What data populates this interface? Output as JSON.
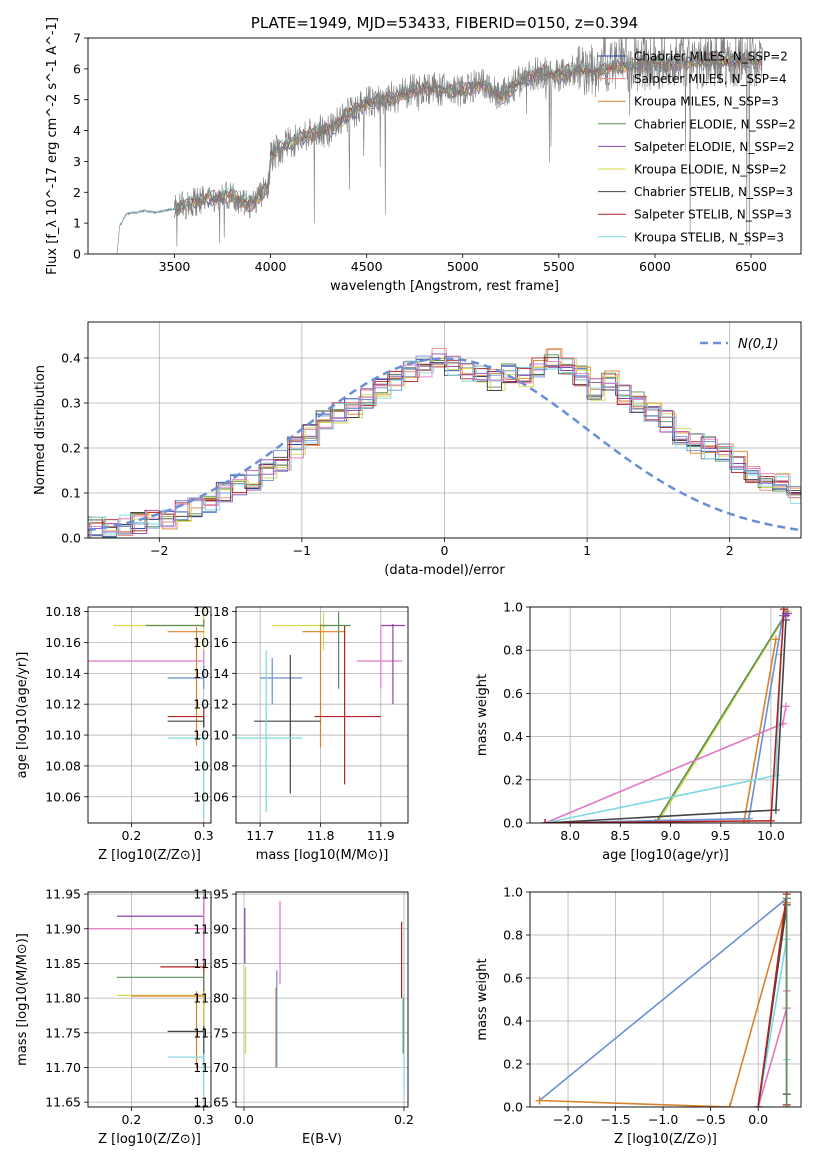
{
  "chart_data": [
    {
      "type": "line",
      "title": "PLATE=1949, MJD=53433, FIBERID=0150, z=0.394",
      "xlabel": "wavelength [Angstrom, rest frame]",
      "ylabel": "Flux [f_λ 10^-17 erg cm^-2 s^-1 A^-1]",
      "xlim": [
        3050,
        6760
      ],
      "ylim": [
        0,
        7
      ],
      "xticks": [
        3500,
        4000,
        4500,
        5000,
        5500,
        6000,
        6500
      ],
      "yticks": [
        0,
        1,
        2,
        3,
        4,
        5,
        6,
        7
      ],
      "legend_position": "right",
      "series": [
        {
          "name": "Chabrier MILES, N_SSP=2",
          "color": "#1f3f9f"
        },
        {
          "name": "Salpeter MILES, N_SSP=4",
          "color": "#f08080"
        },
        {
          "name": "Kroupa MILES, N_SSP=3",
          "color": "#d9822b"
        },
        {
          "name": "Chabrier ELODIE, N_SSP=2",
          "color": "#5a8f5a"
        },
        {
          "name": "Salpeter ELODIE, N_SSP=2",
          "color": "#8e44ad"
        },
        {
          "name": "Kroupa ELODIE, N_SSP=2",
          "color": "#d4d84a"
        },
        {
          "name": "Chabrier STELIB, N_SSP=3",
          "color": "#444444"
        },
        {
          "name": "Salpeter STELIB, N_SSP=3",
          "color": "#b22222"
        },
        {
          "name": "Kroupa STELIB, N_SSP=3",
          "color": "#7fd8e0"
        }
      ],
      "data_series": {
        "color": "#808080",
        "x_start": 3200,
        "x_end": 6560
      },
      "continuum": [
        [
          3200,
          0
        ],
        [
          3215,
          0.9
        ],
        [
          3250,
          1.3
        ],
        [
          3300,
          1.35
        ],
        [
          3350,
          1.4
        ],
        [
          3400,
          1.35
        ],
        [
          3450,
          1.4
        ],
        [
          3520,
          1.5
        ],
        [
          3600,
          1.7
        ],
        [
          3700,
          1.8
        ],
        [
          3800,
          1.9
        ],
        [
          3900,
          1.6
        ],
        [
          3990,
          2.2
        ],
        [
          4000,
          3.2
        ],
        [
          4100,
          3.6
        ],
        [
          4200,
          3.9
        ],
        [
          4300,
          4.0
        ],
        [
          4400,
          4.5
        ],
        [
          4500,
          4.9
        ],
        [
          4600,
          5.0
        ],
        [
          4700,
          5.2
        ],
        [
          4800,
          5.4
        ],
        [
          4900,
          5.3
        ],
        [
          5000,
          5.3
        ],
        [
          5100,
          5.5
        ],
        [
          5200,
          5.1
        ],
        [
          5300,
          5.6
        ],
        [
          5400,
          5.9
        ],
        [
          5500,
          5.8
        ],
        [
          5600,
          6.0
        ],
        [
          5700,
          5.9
        ],
        [
          5800,
          6.1
        ],
        [
          5900,
          6.1
        ],
        [
          6000,
          6.2
        ],
        [
          6100,
          6.2
        ],
        [
          6200,
          6.2
        ],
        [
          6300,
          6.3
        ],
        [
          6400,
          6.2
        ],
        [
          6500,
          6.3
        ],
        [
          6560,
          6.2
        ]
      ]
    },
    {
      "type": "bar",
      "xlabel": "(data-model)/error",
      "ylabel": "Normed distribution",
      "xlim": [
        -2.5,
        2.5
      ],
      "ylim": [
        0,
        0.48
      ],
      "xticks": [
        -2,
        -1,
        0,
        1,
        2
      ],
      "yticks": [
        0.0,
        0.1,
        0.2,
        0.3,
        0.4
      ],
      "grid": true,
      "legend_position": "top-right",
      "normal_curve": {
        "name": "N(0,1)",
        "color": "#6a8fd4",
        "style": "dashed"
      },
      "bin_width": 0.1,
      "bin_start": -2.5,
      "histogram_base": [
        0.03,
        0.025,
        0.03,
        0.035,
        0.04,
        0.045,
        0.06,
        0.07,
        0.08,
        0.1,
        0.12,
        0.13,
        0.15,
        0.17,
        0.2,
        0.23,
        0.26,
        0.28,
        0.29,
        0.31,
        0.33,
        0.35,
        0.37,
        0.38,
        0.4,
        0.38,
        0.37,
        0.36,
        0.35,
        0.37,
        0.36,
        0.38,
        0.4,
        0.38,
        0.36,
        0.33,
        0.35,
        0.32,
        0.3,
        0.28,
        0.26,
        0.22,
        0.21,
        0.2,
        0.19,
        0.17,
        0.14,
        0.13,
        0.12,
        0.1,
        0.09,
        0.08,
        0.07,
        0.07,
        0.06,
        0.05,
        0.045,
        0.04,
        0.035,
        0.03
      ]
    },
    {
      "type": "scatter",
      "xlabel": "Z [log10(Z/Z⊙)]",
      "ylabel": "age [log10(age/yr)]",
      "xlim": [
        0.14,
        0.31
      ],
      "ylim": [
        10.043,
        10.183
      ],
      "xticks": [
        0.2,
        0.3
      ],
      "yticks": [
        10.06,
        10.08,
        10.1,
        10.12,
        10.14,
        10.16,
        10.18
      ],
      "grid": true,
      "points": [
        {
          "x": 0.3,
          "y": 10.171,
          "xerr": [
            0.175,
            0.3
          ],
          "yerr": [
            10.154,
            10.183
          ],
          "color": "#d4d84a"
        },
        {
          "x": 0.3,
          "y": 10.171,
          "xerr": [
            0.22,
            0.3
          ],
          "yerr": [
            10.17,
            10.175
          ],
          "color": "#5a8f5a"
        },
        {
          "x": 0.29,
          "y": 10.167,
          "xerr": [
            0.25,
            0.3
          ],
          "yerr": [
            10.093,
            10.17
          ],
          "color": "#d9822b"
        },
        {
          "x": 0.3,
          "y": 10.148,
          "xerr": [
            0.14,
            0.3
          ],
          "yerr": [
            10.14,
            10.155
          ],
          "color": "#e377c2"
        },
        {
          "x": 0.3,
          "y": 10.137,
          "xerr": [
            0.25,
            0.3
          ],
          "yerr": [
            10.13,
            10.145
          ],
          "color": "#6a8fd4"
        },
        {
          "x": 0.3,
          "y": 10.112,
          "xerr": [
            0.25,
            0.3
          ],
          "yerr": [
            10.105,
            10.118
          ],
          "color": "#b22222"
        },
        {
          "x": 0.3,
          "y": 10.109,
          "xerr": [
            0.25,
            0.3
          ],
          "yerr": [
            10.105,
            10.112
          ],
          "color": "#444444"
        },
        {
          "x": 0.3,
          "y": 10.098,
          "xerr": [
            0.25,
            0.3
          ],
          "yerr": [
            10.046,
            10.1
          ],
          "color": "#7fd8e0"
        }
      ]
    },
    {
      "type": "scatter",
      "xlabel": "mass [log10(M/M⊙)]",
      "ylabel": "",
      "xlim": [
        11.66,
        11.945
      ],
      "ylim": [
        10.043,
        10.183
      ],
      "xticks": [
        11.7,
        11.8,
        11.9
      ],
      "yticks": [
        10.06,
        10.08,
        10.1,
        10.12,
        10.14,
        10.16,
        10.18
      ],
      "grid": true,
      "points": [
        {
          "x": 11.805,
          "y": 10.171,
          "xerr": [
            11.72,
            11.82
          ],
          "yerr": [
            10.155,
            10.18
          ],
          "color": "#d4d84a"
        },
        {
          "x": 11.83,
          "y": 10.171,
          "xerr": [
            11.8,
            11.85
          ],
          "yerr": [
            10.13,
            10.18
          ],
          "color": "#5a8f5a"
        },
        {
          "x": 11.8,
          "y": 10.167,
          "xerr": [
            11.77,
            11.84
          ],
          "yerr": [
            10.092,
            10.172
          ],
          "color": "#d9822b"
        },
        {
          "x": 11.9,
          "y": 10.148,
          "xerr": [
            11.86,
            11.935
          ],
          "yerr": [
            10.13,
            10.17
          ],
          "color": "#e377c2"
        },
        {
          "x": 11.92,
          "y": 10.171,
          "xerr": [
            11.9,
            11.94
          ],
          "yerr": [
            10.12,
            10.172
          ],
          "color": "#8e44ad"
        },
        {
          "x": 11.72,
          "y": 10.137,
          "xerr": [
            11.7,
            11.77
          ],
          "yerr": [
            10.12,
            10.15
          ],
          "color": "#6a8fd4"
        },
        {
          "x": 11.84,
          "y": 10.112,
          "xerr": [
            11.79,
            11.9
          ],
          "yerr": [
            10.068,
            10.171
          ],
          "color": "#b22222"
        },
        {
          "x": 11.75,
          "y": 10.109,
          "xerr": [
            11.69,
            11.8
          ],
          "yerr": [
            10.062,
            10.152
          ],
          "color": "#444444"
        },
        {
          "x": 11.71,
          "y": 10.098,
          "xerr": [
            11.66,
            11.77
          ],
          "yerr": [
            10.05,
            10.155
          ],
          "color": "#7fd8e0"
        }
      ]
    },
    {
      "type": "line",
      "xlabel": "age [log10(age/yr)]",
      "ylabel": "mass weight",
      "xlim": [
        7.6,
        10.3
      ],
      "ylim": [
        0,
        1.0
      ],
      "xticks": [
        8.0,
        8.5,
        9.0,
        9.5,
        10.0
      ],
      "yticks": [
        0.0,
        0.2,
        0.4,
        0.6,
        0.8,
        1.0
      ],
      "grid": true,
      "series": [
        {
          "color": "#d4d84a",
          "points": [
            [
              8.87,
              0
            ],
            [
              10.17,
              0.98
            ]
          ]
        },
        {
          "color": "#5a8f5a",
          "points": [
            [
              8.85,
              0
            ],
            [
              10.15,
              0.97
            ]
          ]
        },
        {
          "color": "#6a8fd4",
          "points": [
            [
              7.75,
              0.0
            ],
            [
              9.78,
              0.02
            ],
            [
              10.12,
              0.96
            ]
          ]
        },
        {
          "color": "#d9822b",
          "points": [
            [
              9.73,
              0.0
            ],
            [
              10.05,
              0.85
            ]
          ]
        },
        {
          "color": "#e377c2",
          "points": [
            [
              7.75,
              0.0
            ],
            [
              10.12,
              0.46
            ],
            [
              10.15,
              0.54
            ]
          ]
        },
        {
          "color": "#7fd8e0",
          "points": [
            [
              7.75,
              0.0
            ],
            [
              10.05,
              0.22
            ],
            [
              10.1,
              0.78
            ]
          ]
        },
        {
          "color": "#444444",
          "points": [
            [
              7.75,
              0.0
            ],
            [
              10.05,
              0.06
            ],
            [
              10.15,
              0.94
            ]
          ]
        },
        {
          "color": "#b22222",
          "points": [
            [
              7.75,
              0.0
            ],
            [
              10.0,
              0.01
            ],
            [
              10.13,
              0.99
            ]
          ]
        },
        {
          "color": "#8e44ad",
          "points": [
            [
              10.15,
              0.96
            ],
            [
              10.17,
              0.97
            ]
          ]
        }
      ]
    },
    {
      "type": "scatter",
      "xlabel": "Z [log10(Z/Z⊙)]",
      "ylabel": "mass [log10(M/M⊙)]",
      "xlim": [
        0.14,
        0.31
      ],
      "ylim": [
        11.643,
        11.953
      ],
      "xticks": [
        0.2,
        0.3
      ],
      "yticks": [
        11.65,
        11.7,
        11.75,
        11.8,
        11.85,
        11.9,
        11.95
      ],
      "grid": true,
      "points": [
        {
          "x": 0.3,
          "y": 11.918,
          "xerr": [
            0.18,
            0.3
          ],
          "yerr": [
            11.85,
            11.94
          ],
          "color": "#8e44ad"
        },
        {
          "x": 0.3,
          "y": 11.9,
          "xerr": [
            0.14,
            0.3
          ],
          "yerr": [
            11.8,
            11.95
          ],
          "color": "#e377c2"
        },
        {
          "x": 0.3,
          "y": 11.845,
          "xerr": [
            0.24,
            0.3
          ],
          "yerr": [
            11.75,
            11.85
          ],
          "color": "#b22222"
        },
        {
          "x": 0.3,
          "y": 11.83,
          "xerr": [
            0.18,
            0.3
          ],
          "yerr": [
            11.8,
            11.84
          ],
          "color": "#5a8f5a"
        },
        {
          "x": 0.3,
          "y": 11.804,
          "xerr": [
            0.18,
            0.3
          ],
          "yerr": [
            11.75,
            11.81
          ],
          "color": "#d4d84a"
        },
        {
          "x": 0.29,
          "y": 11.803,
          "xerr": [
            0.2,
            0.3
          ],
          "yerr": [
            11.7,
            11.81
          ],
          "color": "#d9822b"
        },
        {
          "x": 0.3,
          "y": 11.752,
          "xerr": [
            0.25,
            0.3
          ],
          "yerr": [
            11.7,
            11.76
          ],
          "color": "#444444"
        },
        {
          "x": 0.3,
          "y": 11.715,
          "xerr": [
            0.25,
            0.3
          ],
          "yerr": [
            11.66,
            11.72
          ],
          "color": "#7fd8e0"
        }
      ]
    },
    {
      "type": "scatter",
      "xlabel": "E(B-V)",
      "ylabel": "",
      "xlim": [
        -0.01,
        0.205
      ],
      "ylim": [
        11.643,
        11.953
      ],
      "xticks": [
        0.0,
        0.2
      ],
      "yticks": [
        11.65,
        11.7,
        11.75,
        11.8,
        11.85,
        11.9,
        11.95
      ],
      "grid": true,
      "points": [
        {
          "x": 0.001,
          "y": 11.9,
          "yerr": [
            11.85,
            11.93
          ],
          "color": "#8e44ad"
        },
        {
          "x": 0.002,
          "y": 11.8,
          "yerr": [
            11.72,
            11.845
          ],
          "color": "#d4d84a"
        },
        {
          "x": 0.04,
          "y": 11.76,
          "yerr": [
            11.7,
            11.815
          ],
          "color": "#d9822b"
        },
        {
          "x": 0.041,
          "y": 11.77,
          "yerr": [
            11.7,
            11.84
          ],
          "color": "#6a8fd4"
        },
        {
          "x": 0.045,
          "y": 11.88,
          "yerr": [
            11.82,
            11.94
          ],
          "color": "#e377c2"
        },
        {
          "x": 0.197,
          "y": 11.86,
          "yerr": [
            11.8,
            11.91
          ],
          "color": "#b22222"
        },
        {
          "x": 0.2,
          "y": 11.76,
          "yerr": [
            11.66,
            11.805
          ],
          "color": "#7fd8e0"
        },
        {
          "x": 0.199,
          "y": 11.78,
          "yerr": [
            11.72,
            11.8
          ],
          "color": "#5a8f5a"
        }
      ]
    },
    {
      "type": "line",
      "xlabel": "Z [log10(Z/Z⊙)]",
      "ylabel": "mass weight",
      "xlim": [
        -2.4,
        0.45
      ],
      "ylim": [
        0,
        1.0
      ],
      "xticks": [
        -2.0,
        -1.5,
        -1.0,
        -0.5,
        0.0
      ],
      "yticks": [
        0.0,
        0.2,
        0.4,
        0.6,
        0.8,
        1.0
      ],
      "grid": true,
      "series": [
        {
          "color": "#6a8fd4",
          "points": [
            [
              -2.3,
              0.03
            ],
            [
              0.3,
              0.97
            ]
          ]
        },
        {
          "color": "#d9822b",
          "points": [
            [
              -2.3,
              0.03
            ],
            [
              -0.3,
              0.0
            ],
            [
              0.3,
              0.95
            ]
          ]
        },
        {
          "color": "#e377c2",
          "points": [
            [
              0.0,
              0.0
            ],
            [
              0.3,
              0.46
            ],
            [
              0.3,
              0.54
            ]
          ]
        },
        {
          "color": "#7fd8e0",
          "points": [
            [
              0.0,
              0.0
            ],
            [
              0.3,
              0.78
            ],
            [
              0.3,
              0.22
            ]
          ]
        },
        {
          "color": "#444444",
          "points": [
            [
              0.0,
              0.0
            ],
            [
              0.3,
              0.94
            ],
            [
              0.3,
              0.06
            ]
          ]
        },
        {
          "color": "#b22222",
          "points": [
            [
              0.0,
              0.0
            ],
            [
              0.3,
              0.99
            ],
            [
              0.3,
              0.01
            ]
          ]
        },
        {
          "color": "#5a8f5a",
          "points": [
            [
              0.3,
              0.0
            ],
            [
              0.3,
              0.97
            ]
          ]
        }
      ]
    }
  ]
}
